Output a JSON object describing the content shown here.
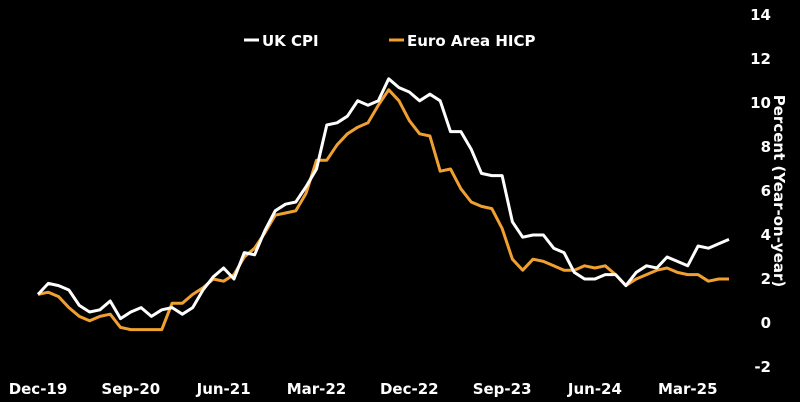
{
  "chart_data": {
    "type": "line",
    "title": "",
    "xlabel": "",
    "ylabel": "Percent (Year-on-year)",
    "ylim": [
      -2,
      14
    ],
    "yticks": [
      -2,
      0,
      2,
      4,
      6,
      8,
      10,
      12,
      14
    ],
    "xticks": [
      "Dec-19",
      "Sep-20",
      "Jun-21",
      "Mar-22",
      "Dec-22",
      "Sep-23",
      "Jun-24",
      "Mar-25"
    ],
    "grid": false,
    "legend": "top-center",
    "x": [
      "Dec-19",
      "Jan-20",
      "Feb-20",
      "Mar-20",
      "Apr-20",
      "May-20",
      "Jun-20",
      "Jul-20",
      "Aug-20",
      "Sep-20",
      "Oct-20",
      "Nov-20",
      "Dec-20",
      "Jan-21",
      "Feb-21",
      "Mar-21",
      "Apr-21",
      "May-21",
      "Jun-21",
      "Jul-21",
      "Aug-21",
      "Sep-21",
      "Oct-21",
      "Nov-21",
      "Dec-21",
      "Jan-22",
      "Feb-22",
      "Mar-22",
      "Apr-22",
      "May-22",
      "Jun-22",
      "Jul-22",
      "Aug-22",
      "Sep-22",
      "Oct-22",
      "Nov-22",
      "Dec-22",
      "Jan-23",
      "Feb-23",
      "Mar-23",
      "Apr-23",
      "May-23",
      "Jun-23",
      "Jul-23",
      "Aug-23",
      "Sep-23",
      "Oct-23",
      "Nov-23",
      "Dec-23",
      "Jan-24",
      "Feb-24",
      "Mar-24",
      "Apr-24",
      "May-24",
      "Jun-24",
      "Jul-24",
      "Aug-24",
      "Sep-24",
      "Oct-24",
      "Nov-24",
      "Dec-24",
      "Jan-25",
      "Feb-25",
      "Mar-25",
      "Apr-25",
      "May-25",
      "Jun-25",
      "Jul-25"
    ],
    "series": [
      {
        "name": "UK CPI",
        "color": "#ffffff",
        "values": [
          1.3,
          1.8,
          1.7,
          1.5,
          0.8,
          0.5,
          0.6,
          1.0,
          0.2,
          0.5,
          0.7,
          0.3,
          0.6,
          0.7,
          0.4,
          0.7,
          1.5,
          2.1,
          2.5,
          2.0,
          3.2,
          3.1,
          4.2,
          5.1,
          5.4,
          5.5,
          6.2,
          7.0,
          9.0,
          9.1,
          9.4,
          10.1,
          9.9,
          10.1,
          11.1,
          10.7,
          10.5,
          10.1,
          10.4,
          10.1,
          8.7,
          8.7,
          7.9,
          6.8,
          6.7,
          6.7,
          4.6,
          3.9,
          4.0,
          4.0,
          3.4,
          3.2,
          2.3,
          2.0,
          2.0,
          2.2,
          2.2,
          1.7,
          2.3,
          2.6,
          2.5,
          3.0,
          2.8,
          2.6,
          3.5,
          3.4,
          3.6,
          3.8
        ]
      },
      {
        "name": "Euro Area HICP",
        "color": "#f0a030",
        "values": [
          1.3,
          1.4,
          1.2,
          0.7,
          0.3,
          0.1,
          0.3,
          0.4,
          -0.2,
          -0.3,
          -0.3,
          -0.3,
          -0.3,
          0.9,
          0.9,
          1.3,
          1.6,
          2.0,
          1.9,
          2.2,
          3.0,
          3.4,
          4.1,
          4.9,
          5.0,
          5.1,
          5.9,
          7.4,
          7.4,
          8.1,
          8.6,
          8.9,
          9.1,
          9.9,
          10.6,
          10.1,
          9.2,
          8.6,
          8.5,
          6.9,
          7.0,
          6.1,
          5.5,
          5.3,
          5.2,
          4.3,
          2.9,
          2.4,
          2.9,
          2.8,
          2.6,
          2.4,
          2.4,
          2.6,
          2.5,
          2.6,
          2.2,
          1.7,
          2.0,
          2.2,
          2.4,
          2.5,
          2.3,
          2.2,
          2.2,
          1.9,
          2.0,
          2.0
        ]
      }
    ]
  }
}
